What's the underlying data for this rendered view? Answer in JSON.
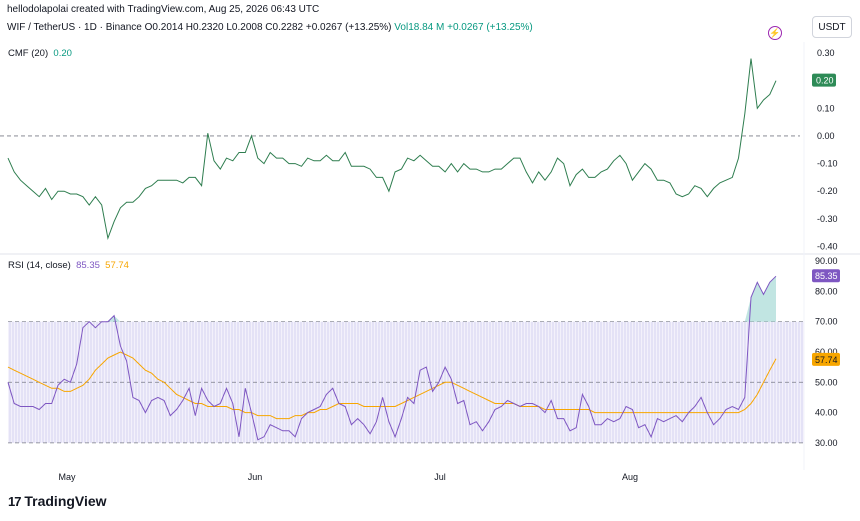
{
  "header": {
    "attribution": "hellodolapolai created with TradingView.com, Aug 25, 2026 06:43 UTC",
    "symbol": "WIF / TetherUS · 1D · Binance",
    "ohlc": "O0.2014 H0.2320 L0.2008 C0.2282 +0.0267 (+13.25%)",
    "volume": "Vol18.84 M +0.0267 (+13.25%)",
    "currency": "USDT",
    "bolt_icon": "lightning-icon"
  },
  "branding": {
    "logo_text": "TradingView"
  },
  "colors": {
    "cmf_line": "#2e7d4f",
    "rsi_line": "#7e57c2",
    "rsi_ma": "#f7a600",
    "band_fill": "#e9e6f7",
    "overbought_fill": "#b2dfdb"
  },
  "chart_data": [
    {
      "type": "line",
      "name": "CMF (20)",
      "legend_label": "CMF (20)",
      "legend_value": "0.20",
      "last_value_label": "0.20",
      "y_ticks": [
        "0.30",
        "0.20",
        "0.10",
        "0.00",
        "-0.10",
        "-0.20",
        "-0.30",
        "-0.40"
      ],
      "ylim": [
        -0.42,
        0.34
      ],
      "zero_line": 0.0,
      "series": [
        {
          "values": [
            -0.08,
            -0.13,
            -0.16,
            -0.18,
            -0.2,
            -0.22,
            -0.19,
            -0.23,
            -0.2,
            -0.2,
            -0.21,
            -0.21,
            -0.22,
            -0.25,
            -0.22,
            -0.25,
            -0.37,
            -0.31,
            -0.26,
            -0.24,
            -0.24,
            -0.22,
            -0.19,
            -0.18,
            -0.16,
            -0.16,
            -0.16,
            -0.16,
            -0.17,
            -0.15,
            -0.15,
            -0.18,
            0.01,
            -0.09,
            -0.12,
            -0.08,
            -0.09,
            -0.06,
            -0.06,
            0.0,
            -0.08,
            -0.1,
            -0.06,
            -0.08,
            -0.08,
            -0.1,
            -0.1,
            -0.11,
            -0.08,
            -0.09,
            -0.09,
            -0.07,
            -0.09,
            -0.09,
            -0.06,
            -0.11,
            -0.11,
            -0.11,
            -0.12,
            -0.15,
            -0.15,
            -0.2,
            -0.13,
            -0.12,
            -0.08,
            -0.09,
            -0.07,
            -0.09,
            -0.11,
            -0.11,
            -0.13,
            -0.1,
            -0.13,
            -0.1,
            -0.12,
            -0.12,
            -0.13,
            -0.13,
            -0.12,
            -0.12,
            -0.1,
            -0.08,
            -0.08,
            -0.13,
            -0.17,
            -0.13,
            -0.16,
            -0.13,
            -0.08,
            -0.1,
            -0.18,
            -0.14,
            -0.12,
            -0.15,
            -0.15,
            -0.13,
            -0.12,
            -0.09,
            -0.07,
            -0.1,
            -0.16,
            -0.13,
            -0.1,
            -0.12,
            -0.16,
            -0.16,
            -0.17,
            -0.21,
            -0.22,
            -0.21,
            -0.18,
            -0.19,
            -0.22,
            -0.19,
            -0.17,
            -0.16,
            -0.15,
            -0.08,
            0.08,
            0.28,
            0.1,
            0.13,
            0.15,
            0.2
          ]
        }
      ]
    },
    {
      "type": "line",
      "name": "RSI (14, close)",
      "legend_label": "RSI (14, close)",
      "legend_rsi": "85.35",
      "legend_ma": "57.74",
      "last_value_label": "85.35",
      "ma_value_label": "57.74",
      "y_ticks": [
        "90.00",
        "80.00",
        "70.00",
        "60.00",
        "50.00",
        "40.00",
        "30.00"
      ],
      "ylim": [
        26,
        92
      ],
      "upper_band": 70,
      "middle_band": 50,
      "lower_band": 30,
      "x_tick_labels": [
        "May",
        "Jun",
        "Jul",
        "Aug"
      ],
      "series": [
        {
          "values": [
            50,
            43,
            42,
            42,
            42,
            41,
            43,
            43,
            49,
            51,
            50,
            56,
            68,
            70,
            68,
            70,
            70,
            72,
            62,
            57,
            45,
            44,
            40,
            44,
            45,
            44,
            39,
            41,
            44,
            48,
            39,
            48,
            44,
            42,
            43,
            48,
            43,
            32,
            48,
            40,
            31,
            32,
            36,
            35,
            34,
            34,
            32,
            38,
            40,
            41,
            42,
            46,
            48,
            43,
            42,
            36,
            38,
            36,
            33,
            37,
            45,
            37,
            32,
            38,
            45,
            43,
            54,
            55,
            47,
            50,
            55,
            51,
            43,
            44,
            36,
            37,
            34,
            37,
            41,
            42,
            44,
            43,
            42,
            43,
            43,
            42,
            40,
            44,
            38,
            38,
            34,
            35,
            46,
            42,
            36,
            36,
            38,
            37,
            38,
            42,
            41,
            35,
            36,
            32,
            38,
            37,
            38,
            39,
            37,
            40,
            42,
            45,
            40,
            36,
            38,
            41,
            42,
            41,
            45,
            78,
            83,
            79,
            83,
            85
          ]
        },
        {
          "values": [
            55,
            54,
            53,
            52,
            51,
            50,
            49,
            48,
            48,
            47,
            47,
            48,
            49,
            51,
            54,
            56,
            58,
            59,
            60,
            59,
            58,
            56,
            54,
            53,
            51,
            50,
            48,
            46,
            45,
            44,
            43,
            43,
            42,
            42,
            42,
            42,
            41,
            41,
            40,
            40,
            39,
            39,
            39,
            38,
            38,
            38,
            39,
            39,
            40,
            40,
            41,
            41,
            42,
            43,
            43,
            43,
            43,
            42,
            42,
            42,
            42,
            42,
            42,
            43,
            44,
            45,
            46,
            47,
            48,
            49,
            50,
            50,
            49,
            48,
            47,
            46,
            45,
            44,
            43,
            43,
            43,
            43,
            42,
            42,
            42,
            42,
            41,
            41,
            41,
            41,
            41,
            41,
            41,
            41,
            40,
            40,
            40,
            40,
            40,
            40,
            40,
            40,
            40,
            40,
            40,
            40,
            40,
            40,
            40,
            40,
            40,
            40,
            40,
            40,
            40,
            40,
            40,
            40,
            41,
            43,
            46,
            50,
            54,
            57.74
          ]
        }
      ]
    }
  ]
}
